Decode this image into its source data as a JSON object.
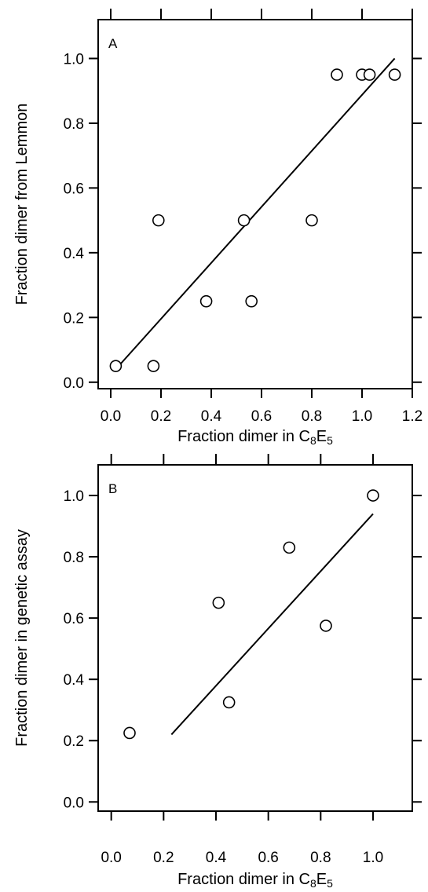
{
  "chart_data": [
    {
      "type": "scatter",
      "panel_label": "A",
      "xlabel": {
        "main": "Fraction dimer in C",
        "sub1": "8",
        "mid": "E",
        "sub2": "5"
      },
      "ylabel": "Fraction dimer from Lemmon",
      "xlim": [
        -0.05,
        1.2
      ],
      "ylim": [
        -0.02,
        1.12
      ],
      "x_ticks": [
        "0.0",
        "0.2",
        "0.4",
        "0.6",
        "0.8",
        "1.0",
        "1.2"
      ],
      "x_tick_values": [
        0.0,
        0.2,
        0.4,
        0.6,
        0.8,
        1.0,
        1.2
      ],
      "y_ticks": [
        "0.0",
        "0.2",
        "0.4",
        "0.6",
        "0.8",
        "1.0"
      ],
      "y_tick_values": [
        0.0,
        0.2,
        0.4,
        0.6,
        0.8,
        1.0
      ],
      "top_ticks": [
        0.0,
        0.2,
        0.4,
        0.6,
        0.8,
        1.0,
        1.2
      ],
      "points": [
        {
          "x": 0.02,
          "y": 0.05
        },
        {
          "x": 0.17,
          "y": 0.05
        },
        {
          "x": 0.19,
          "y": 0.5
        },
        {
          "x": 0.38,
          "y": 0.25
        },
        {
          "x": 0.53,
          "y": 0.5
        },
        {
          "x": 0.56,
          "y": 0.25
        },
        {
          "x": 0.8,
          "y": 0.5
        },
        {
          "x": 0.9,
          "y": 0.95
        },
        {
          "x": 1.0,
          "y": 0.95
        },
        {
          "x": 1.03,
          "y": 0.95
        },
        {
          "x": 1.13,
          "y": 0.95
        }
      ],
      "fit_line": {
        "x": [
          0.02,
          1.13
        ],
        "y": [
          0.04,
          1.0
        ]
      }
    },
    {
      "type": "scatter",
      "panel_label": "B",
      "xlabel": {
        "main": "Fraction dimer in C",
        "sub1": "8",
        "mid": "E",
        "sub2": "5"
      },
      "ylabel": "Fraction dimer in genetic assay",
      "xlim": [
        -0.05,
        1.15
      ],
      "ylim": [
        -0.03,
        1.1
      ],
      "x_ticks": [
        "0.0",
        "0.2",
        "0.4",
        "0.6",
        "0.8",
        "1.0"
      ],
      "x_tick_values": [
        0.0,
        0.2,
        0.4,
        0.6,
        0.8,
        1.0
      ],
      "y_ticks": [
        "0.0",
        "0.2",
        "0.4",
        "0.6",
        "0.8",
        "1.0"
      ],
      "y_tick_values": [
        0.0,
        0.2,
        0.4,
        0.6,
        0.8,
        1.0
      ],
      "top_ticks": [
        0.0,
        0.2,
        0.4,
        0.6,
        0.8,
        1.0
      ],
      "points": [
        {
          "x": 0.07,
          "y": 0.225
        },
        {
          "x": 0.41,
          "y": 0.65
        },
        {
          "x": 0.45,
          "y": 0.325
        },
        {
          "x": 0.68,
          "y": 0.83
        },
        {
          "x": 0.82,
          "y": 0.575
        },
        {
          "x": 1.0,
          "y": 1.0
        }
      ],
      "fit_line": {
        "x": [
          0.23,
          1.0
        ],
        "y": [
          0.22,
          0.94
        ]
      }
    }
  ]
}
